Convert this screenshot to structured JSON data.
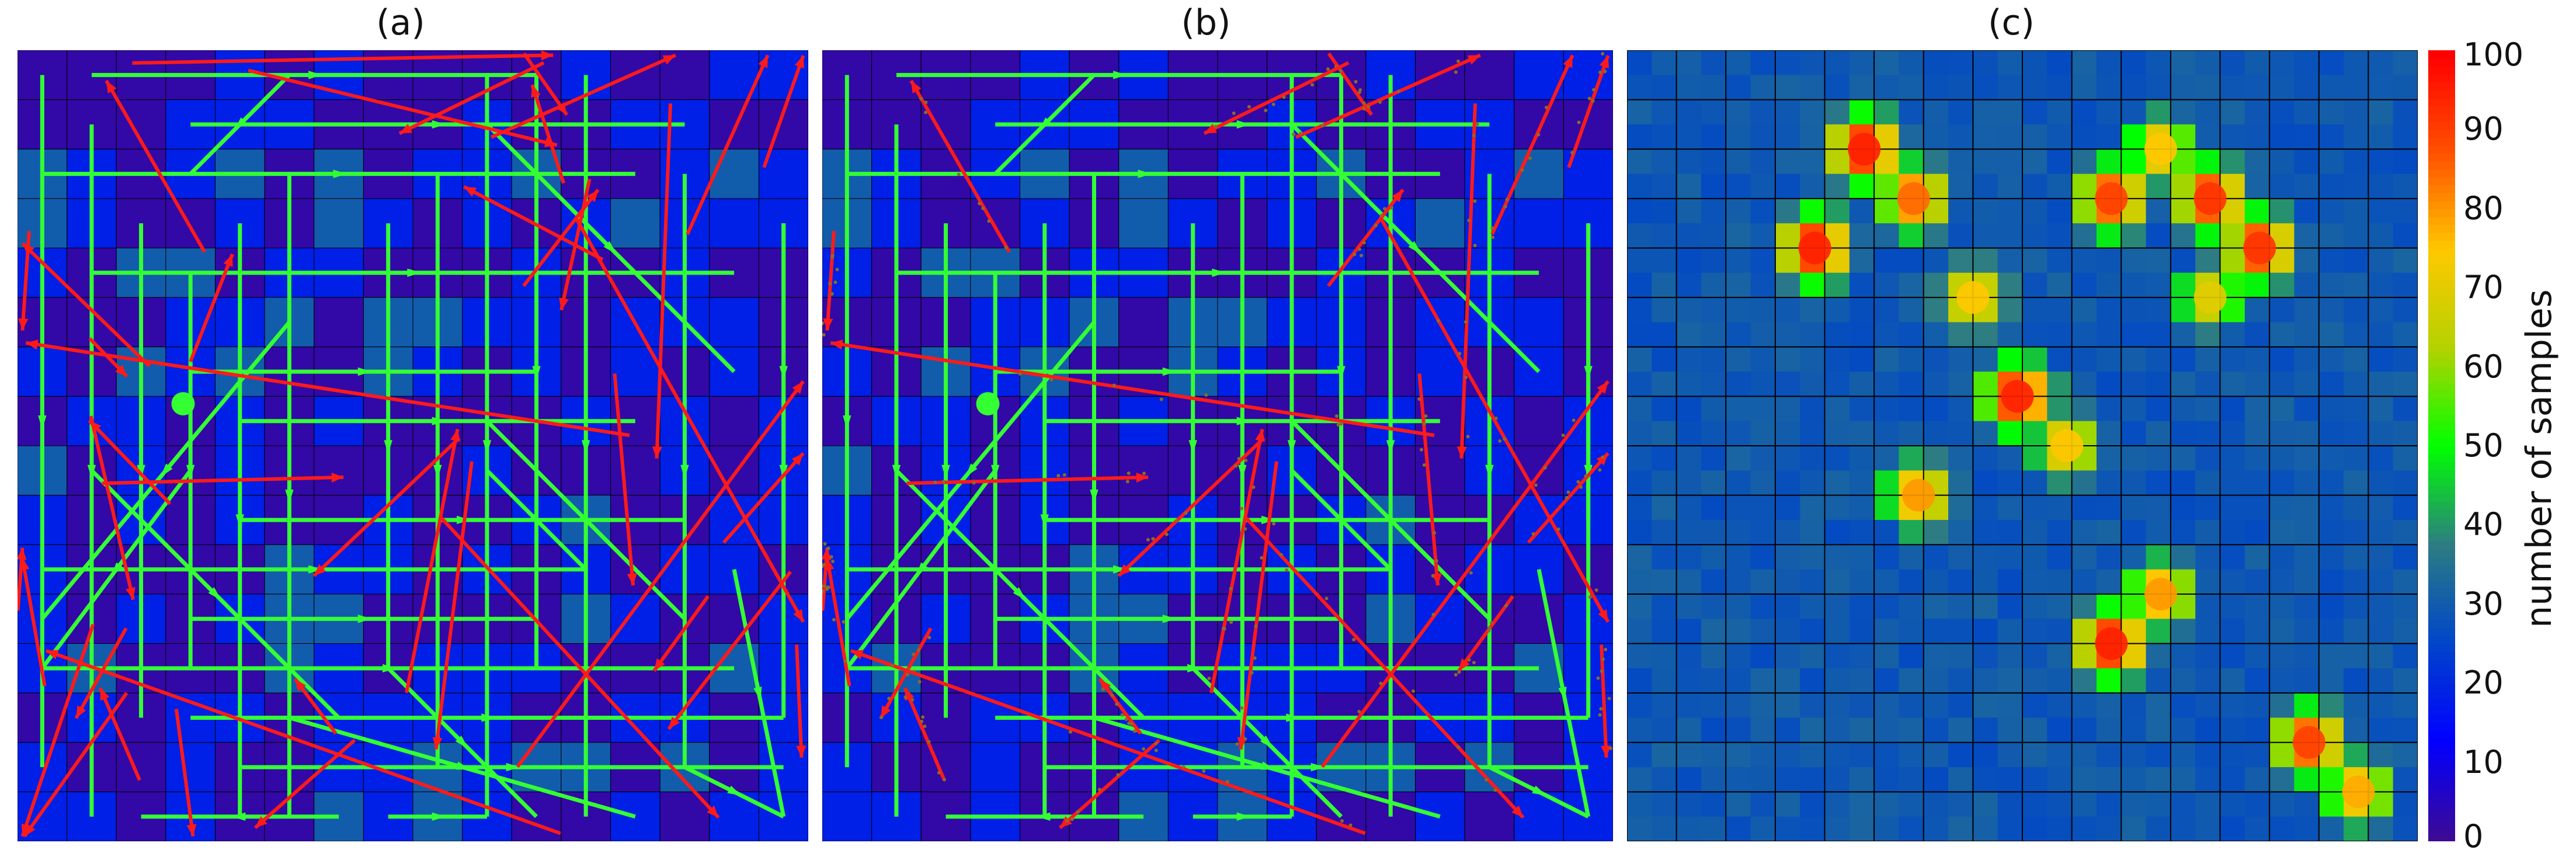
{
  "chart_data": [
    {
      "panel": "(a)",
      "type": "heatmap",
      "grid": [
        16,
        16
      ],
      "overlay": "paths: green arrows on grid edges and diagonals, red long-jump arrows",
      "marker": "green-start-point"
    },
    {
      "panel": "(b)",
      "type": "heatmap",
      "grid": [
        16,
        16
      ],
      "overlay": "paths: green arrows on grid edges and diagonals, red long-jump arrows with scattered samples",
      "marker": "green-start-point"
    },
    {
      "panel": "(c)",
      "type": "heatmap",
      "grid": [
        16,
        16
      ],
      "colorbar": {
        "label": "number of samples",
        "min": 0,
        "max": 100,
        "ticks": [
          0,
          10,
          20,
          30,
          40,
          50,
          60,
          70,
          80,
          90,
          100
        ],
        "colormap": [
          "#3c0a96",
          "#0000ff",
          "#0046c8",
          "#2d7d82",
          "#00ff00",
          "#b4d200",
          "#ffc800",
          "#ff5000",
          "#ff0000"
        ]
      },
      "hotspots": [
        {
          "col": 4.8,
          "row": 2.0,
          "value": 95
        },
        {
          "col": 5.8,
          "row": 3.0,
          "value": 85
        },
        {
          "col": 9.8,
          "row": 3.0,
          "value": 90
        },
        {
          "col": 11.8,
          "row": 3.0,
          "value": 92
        },
        {
          "col": 10.8,
          "row": 2.0,
          "value": 75
        },
        {
          "col": 3.8,
          "row": 4.0,
          "value": 95
        },
        {
          "col": 12.8,
          "row": 4.0,
          "value": 92
        },
        {
          "col": 11.8,
          "row": 5.0,
          "value": 70
        },
        {
          "col": 7.0,
          "row": 5.0,
          "value": 75
        },
        {
          "col": 7.9,
          "row": 7.0,
          "value": 95
        },
        {
          "col": 8.9,
          "row": 8.0,
          "value": 75
        },
        {
          "col": 5.9,
          "row": 9.0,
          "value": 80
        },
        {
          "col": 10.8,
          "row": 11.0,
          "value": 80
        },
        {
          "col": 9.8,
          "row": 12.0,
          "value": 95
        },
        {
          "col": 13.8,
          "row": 14.0,
          "value": 90
        },
        {
          "col": 14.8,
          "row": 15.0,
          "value": 78
        }
      ]
    }
  ],
  "titles": {
    "a": "(a)",
    "b": "(b)",
    "c": "(c)"
  },
  "colorbar_label": "number of samples",
  "colors": {
    "background_low": "#3c0a96",
    "path_green": "#33ff33",
    "jump_red": "#ff1a1a",
    "grid_line": "#000000"
  }
}
